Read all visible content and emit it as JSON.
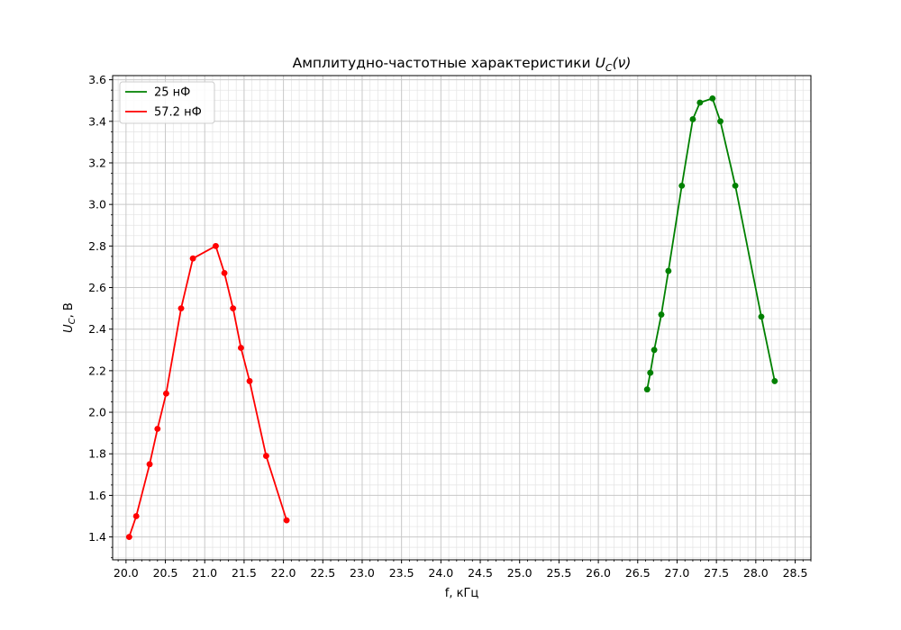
{
  "chart_data": {
    "type": "line",
    "title": "Амплитудно-частотные характеристики",
    "title_math_main": "U",
    "title_math_sub": "C",
    "title_math_arg": "(ν)",
    "xlabel": "f, кГц",
    "ylabel_main": "U",
    "ylabel_sub": "C",
    "ylabel_suffix": ", В",
    "xlim": [
      19.83,
      28.7
    ],
    "ylim": [
      1.29,
      3.62
    ],
    "x_major_step": 0.5,
    "x_minor_step": 0.1,
    "y_major_step": 0.2,
    "y_minor_step": 0.05,
    "grid": true,
    "legend_position": "top-left",
    "series": [
      {
        "name": "25 нФ",
        "color": "#008000",
        "x": [
          26.62,
          26.66,
          26.71,
          26.8,
          26.89,
          27.06,
          27.2,
          27.29,
          27.45,
          27.55,
          27.74,
          28.07,
          28.24
        ],
        "y": [
          2.11,
          2.19,
          2.3,
          2.47,
          2.68,
          3.09,
          3.41,
          3.49,
          3.51,
          3.4,
          3.09,
          2.46,
          2.15
        ]
      },
      {
        "name": "57.2 нФ",
        "color": "#ff0000",
        "x": [
          20.04,
          20.13,
          20.3,
          20.4,
          20.51,
          20.7,
          20.85,
          21.14,
          21.25,
          21.36,
          21.46,
          21.57,
          21.78,
          22.04
        ],
        "y": [
          1.4,
          1.5,
          1.75,
          1.92,
          2.09,
          2.5,
          2.74,
          2.8,
          2.67,
          2.5,
          2.31,
          2.15,
          1.79,
          1.48
        ]
      }
    ]
  }
}
